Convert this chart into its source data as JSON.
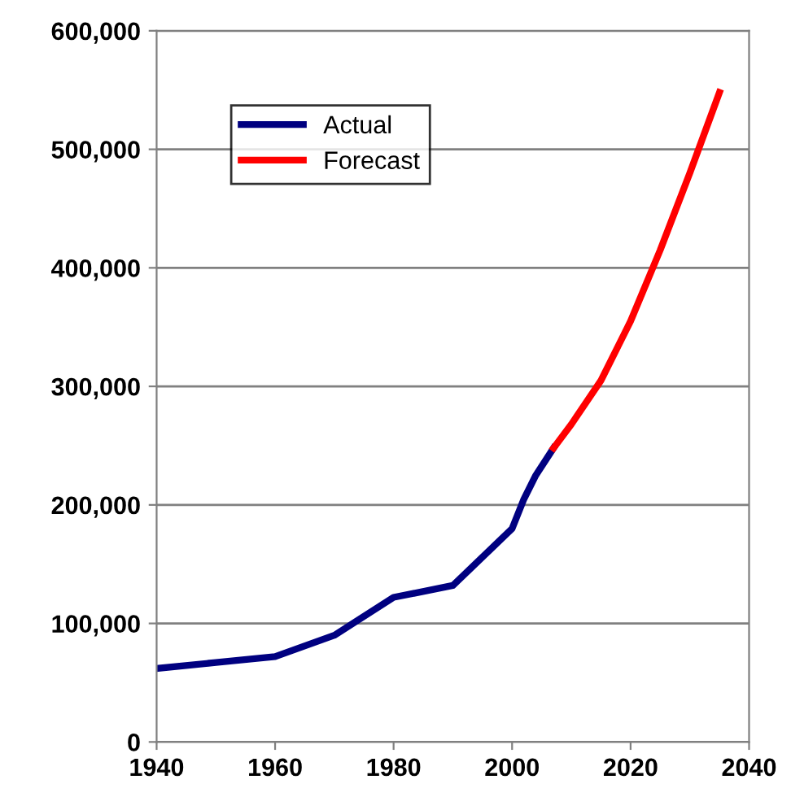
{
  "chart_data": {
    "type": "line",
    "series": [
      {
        "name": "Actual",
        "color": "#000080",
        "x": [
          1940,
          1950,
          1960,
          1970,
          1980,
          1990,
          2000,
          2002,
          2004,
          2007
        ],
        "values": [
          62000,
          67000,
          72000,
          90000,
          122000,
          132000,
          180000,
          205000,
          225000,
          248000
        ]
      },
      {
        "name": "Forecast",
        "color": "#ff0000",
        "x": [
          2007,
          2010,
          2015,
          2020,
          2025,
          2030,
          2035
        ],
        "values": [
          248000,
          268000,
          305000,
          355000,
          415000,
          480000,
          548000
        ]
      }
    ],
    "xlim": [
      1940,
      2040
    ],
    "xticks": [
      1940,
      1960,
      1980,
      2000,
      2020,
      2040
    ],
    "ylim": [
      0,
      600000
    ],
    "yticks": [
      {
        "value": 0,
        "label": "0"
      },
      {
        "value": 100000,
        "label": "100,000"
      },
      {
        "value": 200000,
        "label": "200,000"
      },
      {
        "value": 300000,
        "label": "300,000"
      },
      {
        "value": 400000,
        "label": "400,000"
      },
      {
        "value": 500000,
        "label": "500,000"
      },
      {
        "value": 600000,
        "label": "600,000"
      }
    ],
    "grid": "y",
    "legend": "top left",
    "line_style": "solid"
  }
}
